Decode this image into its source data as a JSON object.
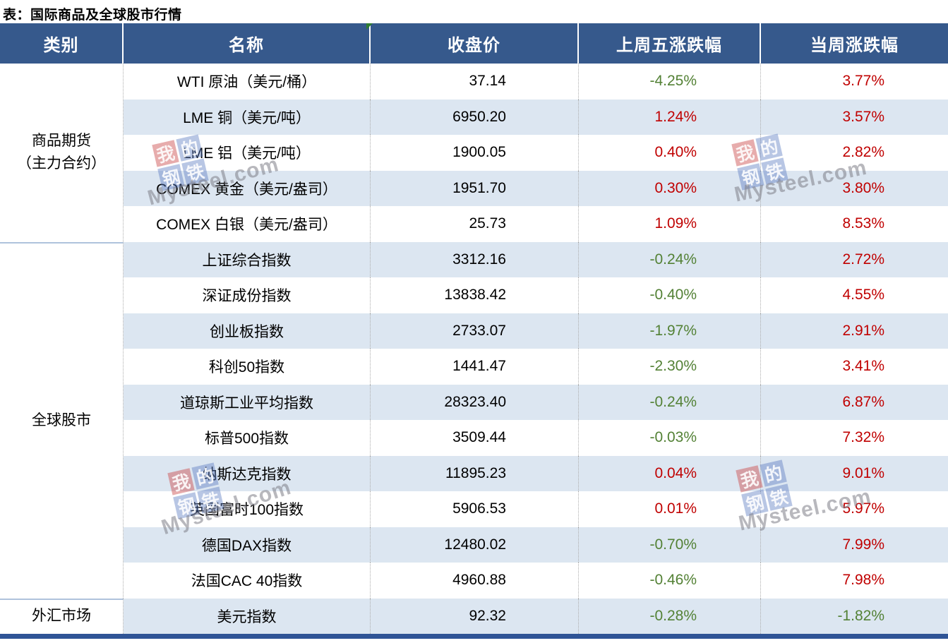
{
  "title": "表：国际商品及全球股市行情",
  "colors": {
    "header_bg": "#36598C",
    "header_text": "#FFFFFF",
    "alt_row_bg": "#DCE6F1",
    "up_red": "#C00000",
    "down_green": "#538135",
    "bottom_bar": "#2F5496",
    "body_text": "#000000",
    "divider_dotted": "#ACACAC",
    "group_divider": "#AFC3DC",
    "comment_flag_green": "#2E7D32"
  },
  "table": {
    "headers": [
      "类别",
      "名称",
      "收盘价",
      "上周五涨跌幅",
      "当周涨跌幅"
    ],
    "groups": [
      {
        "label_lines": [
          "商品期货",
          "（主力合约）"
        ],
        "row_span": 5
      },
      {
        "label_lines": [
          "全球股市"
        ],
        "row_span": 10
      },
      {
        "label_lines": [
          "外汇市场"
        ],
        "row_span": 1
      }
    ],
    "rows": [
      {
        "name": "WTI 原油（美元/桶）",
        "close": "37.14",
        "last_friday_change": "-4.25%",
        "week_change": "3.77%"
      },
      {
        "name": "LME 铜（美元/吨）",
        "close": "6950.20",
        "last_friday_change": "1.24%",
        "week_change": "3.57%"
      },
      {
        "name": "LME 铝（美元/吨）",
        "close": "1900.05",
        "last_friday_change": "0.40%",
        "week_change": "2.82%"
      },
      {
        "name": "COMEX 黄金（美元/盎司）",
        "close": "1951.70",
        "last_friday_change": "0.30%",
        "week_change": "3.80%"
      },
      {
        "name": "COMEX 白银（美元/盎司）",
        "close": "25.73",
        "last_friday_change": "1.09%",
        "week_change": "8.53%"
      },
      {
        "name": "上证综合指数",
        "close": "3312.16",
        "last_friday_change": "-0.24%",
        "week_change": "2.72%"
      },
      {
        "name": "深证成份指数",
        "close": "13838.42",
        "last_friday_change": "-0.40%",
        "week_change": "4.55%"
      },
      {
        "name": "创业板指数",
        "close": "2733.07",
        "last_friday_change": "-1.97%",
        "week_change": "2.91%"
      },
      {
        "name": "科创50指数",
        "close": "1441.47",
        "last_friday_change": "-2.30%",
        "week_change": "3.41%"
      },
      {
        "name": "道琼斯工业平均指数",
        "close": "28323.40",
        "last_friday_change": "-0.24%",
        "week_change": "6.87%"
      },
      {
        "name": "标普500指数",
        "close": "3509.44",
        "last_friday_change": "-0.03%",
        "week_change": "7.32%"
      },
      {
        "name": "纳斯达克指数",
        "close": "11895.23",
        "last_friday_change": "0.04%",
        "week_change": "9.01%"
      },
      {
        "name": "英国富时100指数",
        "close": "5906.53",
        "last_friday_change": "0.01%",
        "week_change": "5.97%"
      },
      {
        "name": "德国DAX指数",
        "close": "12480.02",
        "last_friday_change": "-0.70%",
        "week_change": "7.99%"
      },
      {
        "name": "法国CAC 40指数",
        "close": "4960.88",
        "last_friday_change": "-0.46%",
        "week_change": "7.98%"
      },
      {
        "name": "美元指数",
        "close": "92.32",
        "last_friday_change": "-0.28%",
        "week_change": "-1.82%"
      }
    ]
  },
  "watermark": {
    "squares": [
      "我",
      "的",
      "钢",
      "铁"
    ],
    "text": "Mysteel.com"
  }
}
